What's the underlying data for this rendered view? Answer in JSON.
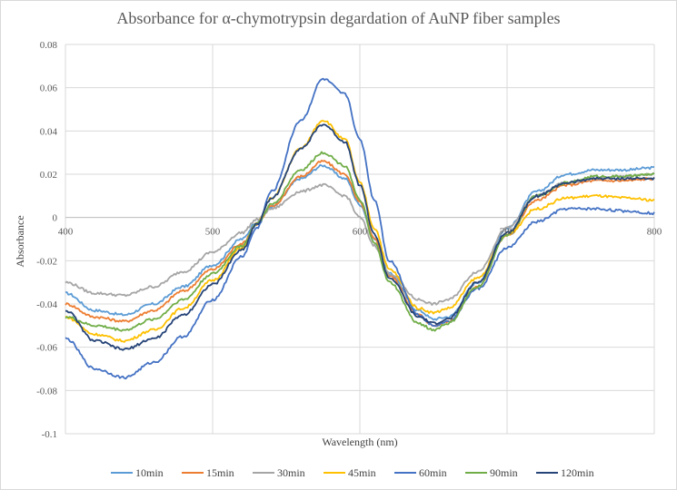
{
  "chart_data": {
    "type": "line",
    "title": "Absorbance for α-chymotrypsin degardation of AuNP fiber samples",
    "xlabel": "Wavelength (nm)",
    "ylabel": "Absorbance",
    "xlim": [
      400,
      800
    ],
    "ylim": [
      -0.1,
      0.08
    ],
    "x_ticks": [
      400,
      500,
      600,
      700,
      800
    ],
    "x_tick_labels": [
      "400",
      "500",
      "600",
      "700",
      "800"
    ],
    "y_ticks": [
      -0.1,
      -0.08,
      -0.06,
      -0.04,
      -0.02,
      0,
      0.02,
      0.04,
      0.06,
      0.08
    ],
    "y_tick_labels": [
      "-0.1",
      "-0.08",
      "-0.06",
      "-0.04",
      "-0.02",
      "0",
      "0.02",
      "0.04",
      "0.06",
      "0.08"
    ],
    "grid": true,
    "legend_position": "bottom",
    "x": [
      400,
      420,
      440,
      460,
      480,
      500,
      520,
      530,
      540,
      560,
      575,
      590,
      600,
      610,
      620,
      640,
      650,
      660,
      680,
      700,
      720,
      740,
      760,
      780,
      800
    ],
    "series": [
      {
        "name": "10min",
        "color": "#5b9bd5",
        "values": [
          -0.035,
          -0.043,
          -0.045,
          -0.04,
          -0.032,
          -0.022,
          -0.01,
          -0.002,
          0.005,
          0.018,
          0.024,
          0.018,
          0.006,
          -0.01,
          -0.026,
          -0.043,
          -0.047,
          -0.046,
          -0.03,
          -0.005,
          0.012,
          0.02,
          0.022,
          0.022,
          0.023
        ]
      },
      {
        "name": "15min",
        "color": "#ed7d31",
        "values": [
          -0.04,
          -0.046,
          -0.048,
          -0.043,
          -0.034,
          -0.024,
          -0.012,
          -0.003,
          0.005,
          0.019,
          0.026,
          0.02,
          0.007,
          -0.01,
          -0.027,
          -0.045,
          -0.05,
          -0.048,
          -0.032,
          -0.008,
          0.008,
          0.015,
          0.017,
          0.017,
          0.018
        ]
      },
      {
        "name": "30min",
        "color": "#a5a5a5",
        "values": [
          -0.03,
          -0.035,
          -0.036,
          -0.032,
          -0.025,
          -0.016,
          -0.007,
          -0.001,
          0.004,
          0.012,
          0.015,
          0.01,
          0.0,
          -0.013,
          -0.026,
          -0.038,
          -0.04,
          -0.038,
          -0.025,
          -0.005,
          0.01,
          0.016,
          0.018,
          0.019,
          0.02
        ]
      },
      {
        "name": "45min",
        "color": "#ffc000",
        "values": [
          -0.046,
          -0.054,
          -0.057,
          -0.052,
          -0.042,
          -0.029,
          -0.014,
          -0.003,
          0.009,
          0.032,
          0.045,
          0.036,
          0.016,
          -0.005,
          -0.024,
          -0.042,
          -0.044,
          -0.042,
          -0.028,
          -0.008,
          0.004,
          0.009,
          0.01,
          0.009,
          0.008
        ]
      },
      {
        "name": "60min",
        "color": "#4472c4",
        "values": [
          -0.056,
          -0.07,
          -0.074,
          -0.067,
          -0.055,
          -0.038,
          -0.018,
          -0.005,
          0.012,
          0.045,
          0.064,
          0.057,
          0.036,
          0.008,
          -0.02,
          -0.045,
          -0.05,
          -0.048,
          -0.033,
          -0.014,
          -0.002,
          0.004,
          0.004,
          0.003,
          0.002
        ]
      },
      {
        "name": "90min",
        "color": "#70ad47",
        "values": [
          -0.046,
          -0.05,
          -0.052,
          -0.047,
          -0.038,
          -0.026,
          -0.013,
          -0.003,
          0.006,
          0.022,
          0.03,
          0.024,
          0.008,
          -0.012,
          -0.03,
          -0.049,
          -0.052,
          -0.049,
          -0.032,
          -0.008,
          0.01,
          0.016,
          0.019,
          0.019,
          0.02
        ]
      },
      {
        "name": "120min",
        "color": "#264478",
        "values": [
          -0.043,
          -0.057,
          -0.061,
          -0.056,
          -0.045,
          -0.031,
          -0.015,
          -0.003,
          0.009,
          0.032,
          0.043,
          0.035,
          0.015,
          -0.008,
          -0.028,
          -0.046,
          -0.049,
          -0.047,
          -0.03,
          -0.007,
          0.01,
          0.016,
          0.018,
          0.018,
          0.018
        ]
      }
    ]
  }
}
